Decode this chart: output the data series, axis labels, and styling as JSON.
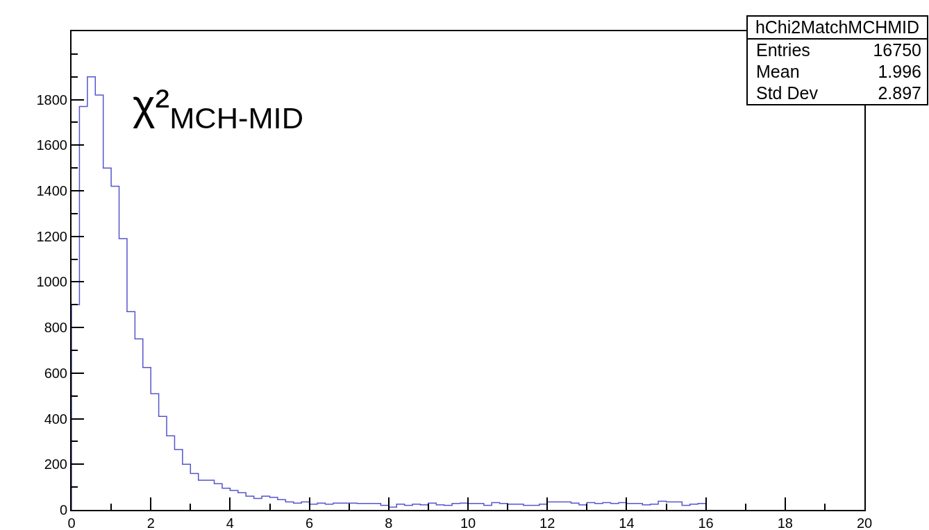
{
  "chart_data": {
    "type": "histogram",
    "bins": [
      0,
      0.2,
      0.4,
      0.6,
      0.8,
      1,
      1.2,
      1.4,
      1.6,
      1.8,
      2,
      2.2,
      2.4,
      2.6,
      2.8,
      3,
      3.2,
      3.4,
      3.6,
      3.8,
      4,
      4.2,
      4.4,
      4.6,
      4.8,
      5,
      5.2,
      5.4,
      5.6,
      5.8,
      6,
      6.2,
      6.4,
      6.6,
      6.8,
      7,
      7.2,
      7.4,
      7.6,
      7.8,
      8,
      8.2,
      8.4,
      8.6,
      8.8,
      9,
      9.2,
      9.4,
      9.6,
      9.8,
      10,
      10.2,
      10.4,
      10.6,
      10.8,
      11,
      11.2,
      11.4,
      11.6,
      11.8,
      12,
      12.2,
      12.4,
      12.6,
      12.8,
      13,
      13.2,
      13.4,
      13.6,
      13.8,
      14,
      14.2,
      14.4,
      14.6,
      14.8,
      15,
      15.2,
      15.4,
      15.6,
      15.8,
      16
    ],
    "values": [
      900,
      1770,
      1900,
      1820,
      1500,
      1420,
      1190,
      870,
      750,
      625,
      510,
      410,
      325,
      265,
      200,
      160,
      130,
      130,
      115,
      95,
      85,
      75,
      60,
      50,
      60,
      55,
      45,
      35,
      30,
      35,
      25,
      30,
      25,
      30,
      30,
      30,
      28,
      28,
      28,
      20,
      12,
      25,
      20,
      25,
      22,
      30,
      22,
      20,
      28,
      30,
      28,
      28,
      20,
      32,
      28,
      25,
      25,
      20,
      20,
      25,
      35,
      35,
      35,
      30,
      22,
      32,
      28,
      32,
      28,
      32,
      28,
      28,
      22,
      25,
      38,
      35,
      35,
      20,
      25,
      28
    ],
    "color": "#5555cc",
    "xlim": [
      0,
      20
    ],
    "xticks": [
      0,
      2,
      4,
      6,
      8,
      10,
      12,
      14,
      16,
      18,
      20
    ],
    "ylim": [
      0,
      2100
    ],
    "yticks": [
      0,
      200,
      400,
      600,
      800,
      1000,
      1200,
      1400,
      1600,
      1800
    ],
    "annotations": [
      "χ²$_{MCH-MID}$",
      "hChi2MatchMCHMID",
      "Entries 16750",
      "Mean 1.996",
      "Std Dev 2.897"
    ]
  }
}
